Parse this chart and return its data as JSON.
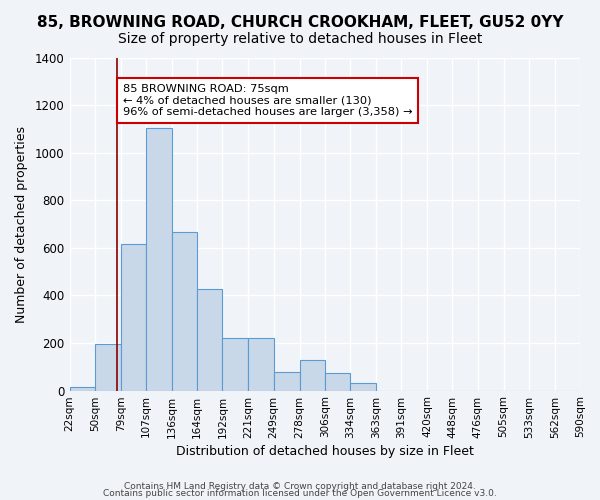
{
  "title": "85, BROWNING ROAD, CHURCH CROOKHAM, FLEET, GU52 0YY",
  "subtitle": "Size of property relative to detached houses in Fleet",
  "xlabel": "Distribution of detached houses by size in Fleet",
  "ylabel": "Number of detached properties",
  "bar_values": [
    15,
    195,
    615,
    1105,
    665,
    425,
    220,
    220,
    80,
    130,
    75,
    30,
    0,
    0,
    0,
    0,
    0,
    0,
    0,
    0
  ],
  "bin_edges": [
    22,
    50,
    79,
    107,
    136,
    164,
    192,
    221,
    249,
    278,
    306,
    334,
    363,
    391,
    420,
    448,
    476,
    505,
    533,
    562,
    590
  ],
  "tick_labels": [
    "22sqm",
    "50sqm",
    "79sqm",
    "107sqm",
    "136sqm",
    "164sqm",
    "192sqm",
    "221sqm",
    "249sqm",
    "278sqm",
    "306sqm",
    "334sqm",
    "363sqm",
    "391sqm",
    "420sqm",
    "448sqm",
    "476sqm",
    "505sqm",
    "533sqm",
    "562sqm",
    "590sqm"
  ],
  "bar_color": "#c8d8e8",
  "bar_edge_color": "#5b9bd5",
  "vline_x": 75,
  "vline_color": "#8b0000",
  "annotation_title": "85 BROWNING ROAD: 75sqm",
  "annotation_line1": "← 4% of detached houses are smaller (130)",
  "annotation_line2": "96% of semi-detached houses are larger (3,358) →",
  "annotation_box_color": "#ffffff",
  "annotation_border_color": "#cc0000",
  "ylim": [
    0,
    1400
  ],
  "yticks": [
    0,
    200,
    400,
    600,
    800,
    1000,
    1200,
    1400
  ],
  "footer1": "Contains HM Land Registry data © Crown copyright and database right 2024.",
  "footer2": "Contains public sector information licensed under the Open Government Licence v3.0.",
  "background_color": "#f0f4f8",
  "grid_color": "#ffffff",
  "title_fontsize": 11,
  "subtitle_fontsize": 10,
  "axis_label_fontsize": 9,
  "tick_fontsize": 7.5,
  "footer_fontsize": 6.5
}
